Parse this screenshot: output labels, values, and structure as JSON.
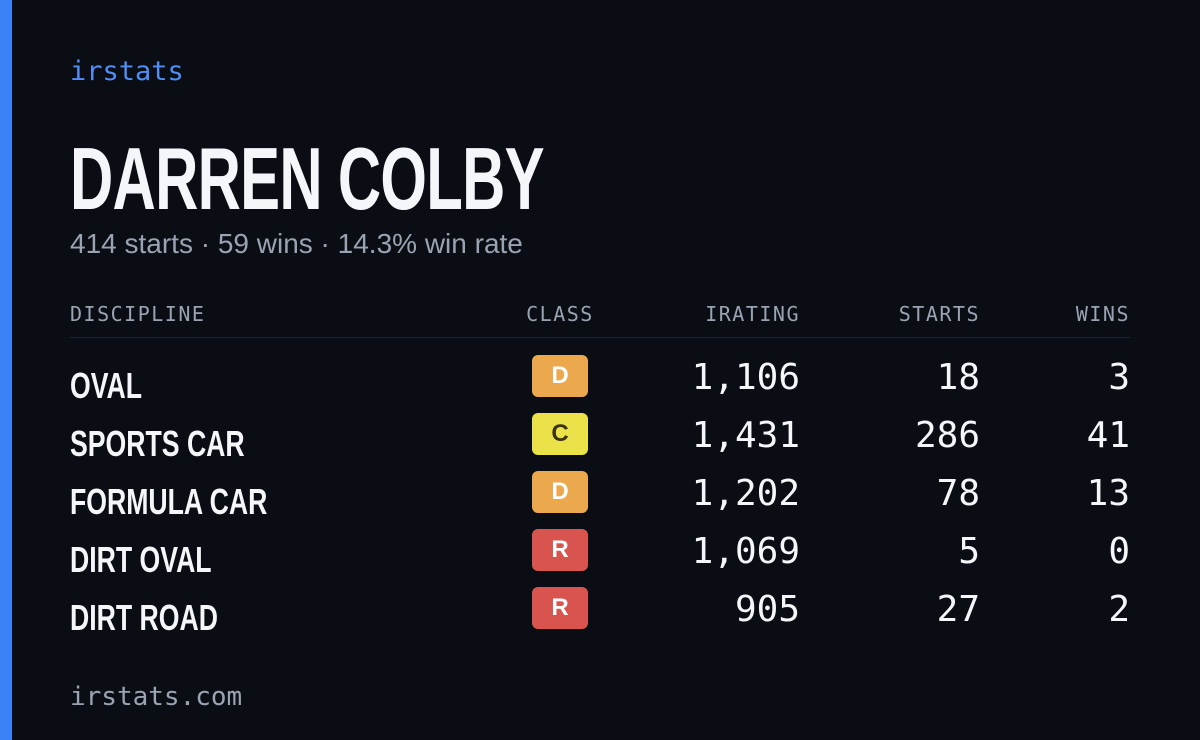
{
  "brand": "irstats",
  "driver": {
    "name": "DARREN COLBY",
    "summary": "414 starts · 59 wins · 14.3% win rate"
  },
  "table": {
    "headers": [
      "DISCIPLINE",
      "CLASS",
      "IRATING",
      "STARTS",
      "WINS"
    ],
    "rows": [
      {
        "discipline": "OVAL",
        "class": "D",
        "class_color": "#eba84c",
        "irating": "1,106",
        "starts": "18",
        "wins": "3"
      },
      {
        "discipline": "SPORTS CAR",
        "class": "C",
        "class_color": "#ebe24a",
        "irating": "1,431",
        "starts": "286",
        "wins": "41"
      },
      {
        "discipline": "FORMULA CAR",
        "class": "D",
        "class_color": "#eba84c",
        "irating": "1,202",
        "starts": "78",
        "wins": "13"
      },
      {
        "discipline": "DIRT OVAL",
        "class": "R",
        "class_color": "#d9534f",
        "irating": "1,069",
        "starts": "5",
        "wins": "0"
      },
      {
        "discipline": "DIRT ROAD",
        "class": "R",
        "class_color": "#d9534f",
        "irating": "905",
        "starts": "27",
        "wins": "2"
      }
    ]
  },
  "footer": "irstats.com"
}
